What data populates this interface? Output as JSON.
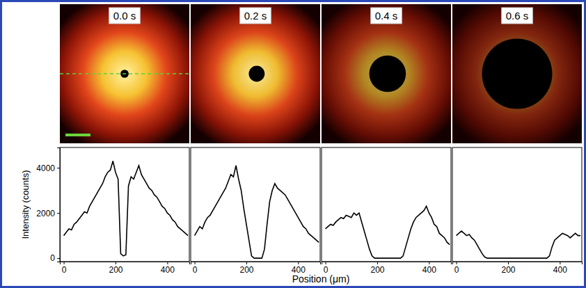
{
  "chart_data": [
    {
      "type": "line",
      "title": "0.0 s",
      "y_label": "Intensity (counts)",
      "x_label": "Position (μm)",
      "x": [
        0,
        10,
        20,
        30,
        40,
        50,
        60,
        70,
        80,
        90,
        100,
        110,
        120,
        130,
        140,
        150,
        160,
        170,
        180,
        190,
        200,
        210,
        220,
        230,
        240,
        250,
        260,
        270,
        280,
        290,
        300,
        310,
        320,
        330,
        340,
        350,
        360,
        370,
        380,
        390,
        400,
        410,
        420,
        430,
        440,
        450,
        460,
        470,
        480
      ],
      "values": [
        1000,
        1150,
        1300,
        1250,
        1500,
        1600,
        1750,
        1900,
        2050,
        2000,
        2300,
        2500,
        2700,
        2900,
        3100,
        3300,
        3600,
        3800,
        3900,
        4300,
        3800,
        3500,
        200,
        100,
        150,
        3200,
        3600,
        3500,
        3800,
        4100,
        3700,
        3500,
        3300,
        3100,
        3000,
        2800,
        2700,
        2500,
        2300,
        2200,
        2000,
        1900,
        1700,
        1600,
        1400,
        1300,
        1200,
        1100,
        1000
      ],
      "xlim": [
        -15,
        485
      ],
      "ylim": [
        -150,
        4900
      ],
      "xticks": [
        0,
        200,
        400
      ],
      "yticks": [
        0,
        2000,
        4000
      ]
    },
    {
      "type": "line",
      "title": "0.2 s",
      "tick_labels": "x",
      "x": [
        0,
        10,
        20,
        30,
        40,
        50,
        60,
        70,
        80,
        90,
        100,
        110,
        120,
        130,
        140,
        150,
        160,
        170,
        180,
        190,
        200,
        210,
        220,
        230,
        240,
        250,
        260,
        270,
        280,
        290,
        300,
        310,
        320,
        330,
        340,
        350,
        360,
        370,
        380,
        390,
        400,
        410,
        420,
        430,
        440,
        450,
        460,
        470,
        480
      ],
      "values": [
        1000,
        1200,
        1400,
        1300,
        1600,
        1800,
        1900,
        2100,
        2300,
        2500,
        2700,
        2900,
        3100,
        3400,
        3700,
        3600,
        4100,
        3500,
        3000,
        2200,
        1500,
        800,
        100,
        0,
        0,
        0,
        0,
        400,
        1500,
        2500,
        3000,
        3300,
        3100,
        3000,
        2900,
        2800,
        2600,
        2400,
        2200,
        2000,
        1800,
        1600,
        1400,
        1300,
        1100,
        1000,
        900,
        800,
        700
      ],
      "xlim": [
        -15,
        485
      ],
      "ylim": [
        -150,
        4900
      ],
      "xticks": [
        0,
        200,
        400
      ]
    },
    {
      "type": "line",
      "title": "0.4 s",
      "tick_labels": "x",
      "x": [
        0,
        10,
        20,
        30,
        40,
        50,
        60,
        70,
        80,
        90,
        100,
        110,
        120,
        130,
        140,
        150,
        160,
        170,
        180,
        190,
        200,
        210,
        220,
        230,
        240,
        250,
        260,
        270,
        280,
        290,
        300,
        310,
        320,
        330,
        340,
        350,
        360,
        370,
        380,
        390,
        400,
        410,
        420,
        430,
        440,
        450,
        460,
        470,
        480
      ],
      "values": [
        1300,
        1400,
        1500,
        1450,
        1600,
        1700,
        1800,
        1750,
        1900,
        1850,
        1800,
        2000,
        1900,
        2000,
        1600,
        1200,
        800,
        400,
        100,
        0,
        0,
        0,
        0,
        0,
        0,
        0,
        0,
        0,
        0,
        0,
        100,
        500,
        900,
        1300,
        1600,
        1800,
        1900,
        2000,
        2100,
        2300,
        2000,
        1800,
        1500,
        1400,
        1100,
        1000,
        900,
        700,
        600
      ],
      "xlim": [
        -15,
        485
      ],
      "ylim": [
        -150,
        4900
      ],
      "xticks": [
        0,
        200,
        400
      ]
    },
    {
      "type": "line",
      "title": "0.6 s",
      "tick_labels": "x",
      "x": [
        0,
        10,
        20,
        30,
        40,
        50,
        60,
        70,
        80,
        90,
        100,
        110,
        120,
        130,
        140,
        150,
        160,
        170,
        180,
        190,
        200,
        210,
        220,
        230,
        240,
        250,
        260,
        270,
        280,
        290,
        300,
        310,
        320,
        330,
        340,
        350,
        360,
        370,
        380,
        390,
        400,
        410,
        420,
        430,
        440,
        450,
        460,
        470,
        480
      ],
      "values": [
        1000,
        1100,
        1200,
        1100,
        1000,
        1050,
        900,
        800,
        600,
        400,
        200,
        50,
        0,
        0,
        0,
        0,
        0,
        0,
        0,
        0,
        0,
        0,
        0,
        0,
        0,
        0,
        0,
        0,
        0,
        0,
        0,
        0,
        0,
        0,
        0,
        0,
        100,
        500,
        800,
        900,
        1000,
        1100,
        1050,
        1000,
        900,
        1000,
        1100,
        1000,
        1000
      ],
      "xlim": [
        -15,
        485
      ],
      "ylim": [
        -150,
        4900
      ],
      "xticks": [
        0,
        200,
        400
      ]
    }
  ]
}
